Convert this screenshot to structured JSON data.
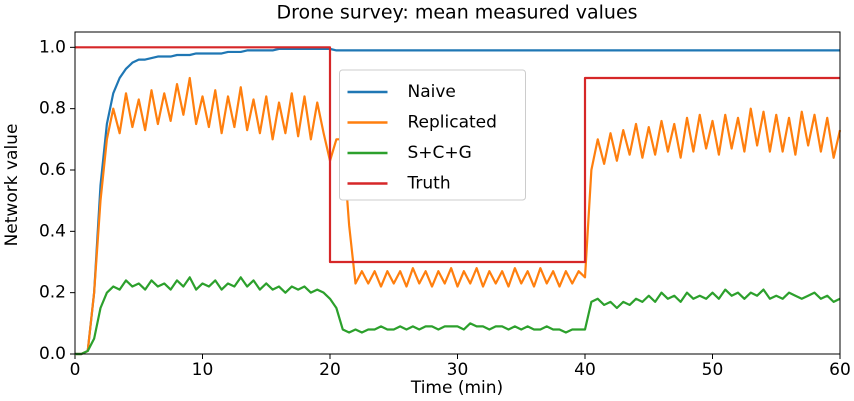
{
  "chart_data": {
    "type": "line",
    "title": "Drone survey: mean measured values",
    "x_label": "Time (min)",
    "y_label": "Network value",
    "x": [
      0,
      0.5,
      1,
      1.5,
      2,
      2.5,
      3,
      3.5,
      4,
      4.5,
      5,
      5.5,
      6,
      6.5,
      7,
      7.5,
      8,
      8.5,
      9,
      9.5,
      10,
      10.5,
      11,
      11.5,
      12,
      12.5,
      13,
      13.5,
      14,
      14.5,
      15,
      15.5,
      16,
      16.5,
      17,
      17.5,
      18,
      18.5,
      19,
      19.5,
      20,
      20.5,
      21,
      21.5,
      22,
      22.5,
      23,
      23.5,
      24,
      24.5,
      25,
      25.5,
      26,
      26.5,
      27,
      27.5,
      28,
      28.5,
      29,
      29.5,
      30,
      30.5,
      31,
      31.5,
      32,
      32.5,
      33,
      33.5,
      34,
      34.5,
      35,
      35.5,
      36,
      36.5,
      37,
      37.5,
      38,
      38.5,
      39,
      39.5,
      40,
      40.5,
      41,
      41.5,
      42,
      42.5,
      43,
      43.5,
      44,
      44.5,
      45,
      45.5,
      46,
      46.5,
      47,
      47.5,
      48,
      48.5,
      49,
      49.5,
      50,
      50.5,
      51,
      51.5,
      52,
      52.5,
      53,
      53.5,
      54,
      54.5,
      55,
      55.5,
      56,
      56.5,
      57,
      57.5,
      58,
      58.5,
      59,
      59.5,
      60
    ],
    "series": [
      {
        "name": "Naive",
        "color": "#1f77b4",
        "values": [
          0,
          0,
          0.01,
          0.2,
          0.55,
          0.75,
          0.85,
          0.9,
          0.93,
          0.95,
          0.96,
          0.96,
          0.965,
          0.97,
          0.97,
          0.97,
          0.975,
          0.975,
          0.975,
          0.98,
          0.98,
          0.98,
          0.98,
          0.98,
          0.985,
          0.985,
          0.985,
          0.99,
          0.99,
          0.99,
          0.99,
          0.99,
          0.995,
          0.995,
          0.995,
          0.995,
          0.995,
          0.995,
          0.995,
          0.995,
          0.995,
          0.99,
          0.99,
          0.99,
          0.99,
          0.99,
          0.99,
          0.99,
          0.99,
          0.99,
          0.99,
          0.99,
          0.99,
          0.99,
          0.99,
          0.99,
          0.99,
          0.99,
          0.99,
          0.99,
          0.99,
          0.99,
          0.99,
          0.99,
          0.99,
          0.99,
          0.99,
          0.99,
          0.99,
          0.99,
          0.99,
          0.99,
          0.99,
          0.99,
          0.99,
          0.99,
          0.99,
          0.99,
          0.99,
          0.99,
          0.99,
          0.99,
          0.99,
          0.99,
          0.99,
          0.99,
          0.99,
          0.99,
          0.99,
          0.99,
          0.99,
          0.99,
          0.99,
          0.99,
          0.99,
          0.99,
          0.99,
          0.99,
          0.99,
          0.99,
          0.99,
          0.99,
          0.99,
          0.99,
          0.99,
          0.99,
          0.99,
          0.99,
          0.99,
          0.99,
          0.99,
          0.99,
          0.99,
          0.99,
          0.99,
          0.99,
          0.99,
          0.99,
          0.99,
          0.99,
          0.99
        ]
      },
      {
        "name": "Replicated",
        "color": "#ff7f0e",
        "values": [
          0,
          0,
          0.01,
          0.2,
          0.5,
          0.7,
          0.8,
          0.72,
          0.85,
          0.74,
          0.83,
          0.73,
          0.86,
          0.75,
          0.85,
          0.76,
          0.88,
          0.78,
          0.9,
          0.75,
          0.84,
          0.74,
          0.86,
          0.72,
          0.84,
          0.74,
          0.87,
          0.73,
          0.83,
          0.72,
          0.84,
          0.7,
          0.82,
          0.72,
          0.85,
          0.71,
          0.84,
          0.7,
          0.82,
          0.72,
          0.63,
          0.7,
          0.7,
          0.42,
          0.23,
          0.27,
          0.23,
          0.27,
          0.22,
          0.27,
          0.23,
          0.27,
          0.22,
          0.28,
          0.23,
          0.27,
          0.22,
          0.27,
          0.23,
          0.28,
          0.22,
          0.27,
          0.23,
          0.28,
          0.22,
          0.27,
          0.23,
          0.27,
          0.22,
          0.28,
          0.23,
          0.27,
          0.22,
          0.28,
          0.23,
          0.27,
          0.22,
          0.27,
          0.23,
          0.27,
          0.25,
          0.6,
          0.7,
          0.62,
          0.72,
          0.63,
          0.73,
          0.65,
          0.75,
          0.64,
          0.74,
          0.65,
          0.76,
          0.66,
          0.75,
          0.64,
          0.77,
          0.66,
          0.78,
          0.67,
          0.76,
          0.65,
          0.78,
          0.67,
          0.77,
          0.66,
          0.8,
          0.68,
          0.79,
          0.66,
          0.78,
          0.66,
          0.77,
          0.65,
          0.79,
          0.68,
          0.78,
          0.66,
          0.77,
          0.64,
          0.73
        ]
      },
      {
        "name": "S+C+G",
        "color": "#2ca02c",
        "values": [
          0,
          0,
          0.01,
          0.05,
          0.15,
          0.2,
          0.22,
          0.21,
          0.24,
          0.22,
          0.23,
          0.21,
          0.24,
          0.22,
          0.23,
          0.21,
          0.24,
          0.22,
          0.25,
          0.21,
          0.23,
          0.22,
          0.24,
          0.21,
          0.23,
          0.22,
          0.25,
          0.22,
          0.24,
          0.21,
          0.23,
          0.21,
          0.22,
          0.2,
          0.22,
          0.21,
          0.22,
          0.2,
          0.21,
          0.2,
          0.18,
          0.15,
          0.08,
          0.07,
          0.08,
          0.07,
          0.08,
          0.08,
          0.09,
          0.08,
          0.08,
          0.09,
          0.08,
          0.09,
          0.08,
          0.09,
          0.09,
          0.08,
          0.09,
          0.09,
          0.09,
          0.08,
          0.1,
          0.09,
          0.09,
          0.08,
          0.09,
          0.09,
          0.08,
          0.09,
          0.08,
          0.09,
          0.08,
          0.08,
          0.09,
          0.08,
          0.08,
          0.07,
          0.08,
          0.08,
          0.08,
          0.17,
          0.18,
          0.16,
          0.17,
          0.15,
          0.17,
          0.16,
          0.18,
          0.17,
          0.19,
          0.17,
          0.2,
          0.18,
          0.19,
          0.17,
          0.2,
          0.18,
          0.19,
          0.18,
          0.2,
          0.18,
          0.21,
          0.19,
          0.2,
          0.18,
          0.2,
          0.19,
          0.21,
          0.18,
          0.19,
          0.18,
          0.2,
          0.19,
          0.18,
          0.19,
          0.2,
          0.18,
          0.19,
          0.17,
          0.18
        ]
      },
      {
        "name": "Truth",
        "color": "#d62728",
        "x": [
          0,
          20,
          20,
          40,
          40,
          60
        ],
        "values": [
          1,
          1,
          0.3,
          0.3,
          0.9,
          0.9
        ]
      }
    ],
    "xlim": [
      0,
      60
    ],
    "ylim": [
      0,
      1.05
    ],
    "xticks": [
      0,
      10,
      20,
      30,
      40,
      50,
      60
    ],
    "yticks": [
      {
        "value": 0,
        "label": "0.0"
      },
      0.2,
      0.4,
      0.6,
      0.8,
      {
        "value": 1,
        "label": "1.0"
      }
    ],
    "legend": "center",
    "grid": false
  }
}
